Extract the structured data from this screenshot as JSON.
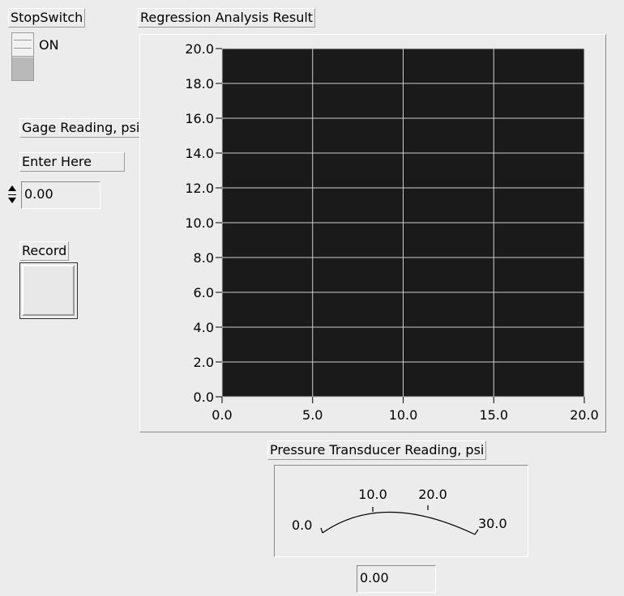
{
  "stop_switch": {
    "label": "StopSwitch",
    "state_text": "ON"
  },
  "gage": {
    "label": "Gage Reading, psi",
    "enter_label": "Enter Here",
    "value": "0.00"
  },
  "record": {
    "label": "Record"
  },
  "graph": {
    "title": "Regression Analysis Result",
    "plot_bg": "#1a1a1a",
    "grid_color": "#cfcfcf"
  },
  "meter": {
    "label": "Pressure Transducer Reading, psi",
    "readout": "0.00",
    "needle_color": "#ff0000",
    "value": 0,
    "range": [
      0,
      30
    ],
    "ticks": [
      "0.0",
      "10.0",
      "20.0",
      "30.0"
    ]
  },
  "chart_data": {
    "type": "scatter",
    "title": "Regression Analysis Result",
    "xlabel": "",
    "ylabel": "",
    "xlim": [
      0,
      20
    ],
    "ylim": [
      0,
      20
    ],
    "xticks": [
      "0.0",
      "5.0",
      "10.0",
      "15.0",
      "20.0"
    ],
    "yticks": [
      "0.0",
      "2.0",
      "4.0",
      "6.0",
      "8.0",
      "10.0",
      "12.0",
      "14.0",
      "16.0",
      "18.0",
      "20.0"
    ],
    "grid": true,
    "series": []
  }
}
